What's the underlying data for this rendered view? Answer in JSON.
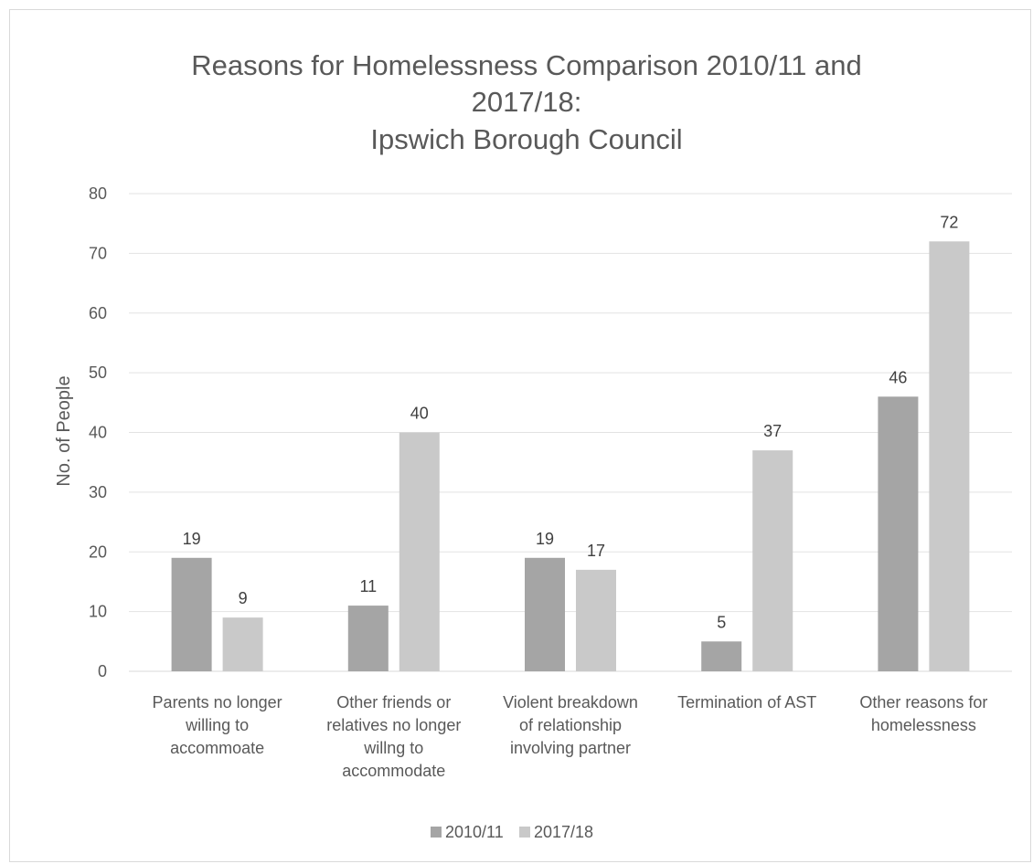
{
  "chart_data": {
    "type": "bar",
    "title_lines": [
      "Reasons for Homelessness Comparison 2010/11 and",
      "2017/18:",
      "Ipswich Borough Council"
    ],
    "ylabel": "No. of People",
    "xlabel": "",
    "ylim": [
      0,
      80
    ],
    "yticks": [
      0,
      10,
      20,
      30,
      40,
      50,
      60,
      70,
      80
    ],
    "grid": true,
    "legend_position": "bottom",
    "categories": [
      [
        "Parents no longer",
        "willing to",
        "accommoate"
      ],
      [
        "Other friends or",
        "relatives no longer",
        "willng to",
        "accommodate"
      ],
      [
        "Violent breakdown",
        "of relationship",
        "involving partner"
      ],
      [
        "Termination of AST"
      ],
      [
        "Other reasons for",
        "homelessness"
      ]
    ],
    "series": [
      {
        "name": "2010/11",
        "color": "#a5a5a5",
        "values": [
          19,
          11,
          19,
          5,
          46
        ]
      },
      {
        "name": "2017/18",
        "color": "#c9c9c9",
        "values": [
          9,
          40,
          17,
          37,
          72
        ]
      }
    ]
  }
}
